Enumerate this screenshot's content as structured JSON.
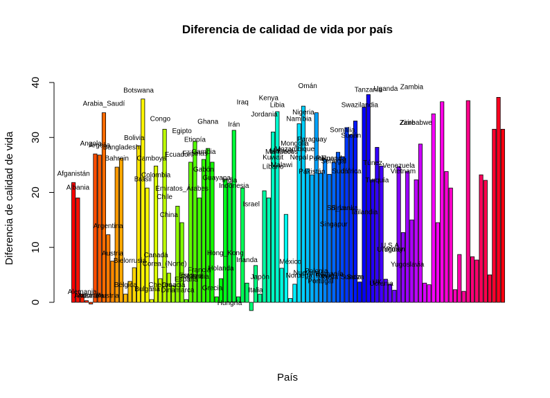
{
  "chart_data": {
    "type": "bar",
    "title": "Diferencia de calidad de vida por país",
    "xlabel": "País",
    "ylabel": "Diferencia de calidad de vida",
    "ylim": [
      -2,
      40
    ],
    "yticks": [
      0,
      10,
      20,
      30,
      40
    ],
    "grid": false,
    "legend": "none",
    "bar_color_scheme": "rainbow",
    "values": [
      21.8,
      19.0,
      1.5,
      0.3,
      -0.3,
      27.0,
      26.8,
      34.5,
      12.3,
      7.5,
      24.6,
      26.2,
      1.5,
      3.8,
      6.3,
      28.5,
      37.0,
      20.8,
      0.5,
      24.8,
      4.3,
      31.5,
      5.3,
      3.0,
      17.5,
      14.5,
      0.5,
      25.5,
      29.3,
      19.0,
      26.0,
      28.0,
      25.5,
      1.0,
      4.3,
      22.3,
      21.7,
      31.3,
      1.0,
      20.8,
      3.5,
      -1.5,
      6.7,
      1.5,
      20.3,
      19.0,
      31.0,
      34.7,
      6.2,
      16.0,
      0.7,
      3.3,
      32.5,
      35.7,
      24.3,
      23.2,
      34.5,
      23.5,
      26.0,
      23.3,
      25.5,
      27.3,
      26.5,
      31.8,
      30.5,
      33.0,
      3.7,
      35.5,
      37.8,
      22.3,
      28.2,
      24.8,
      4.2,
      3.3,
      2.2,
      24.7,
      12.7,
      23.8,
      15.0,
      22.3,
      28.8,
      3.5,
      3.2,
      34.3,
      14.5,
      36.5,
      23.8,
      20.8,
      2.3,
      8.7,
      2.0,
      36.7,
      8.3,
      7.7,
      23.2,
      22.2,
      5.0,
      31.5,
      37.3,
      31.5
    ],
    "annotations": [
      {
        "text": "Afganistán",
        "x": 1,
        "y": 23.0
      },
      {
        "text": "Albania",
        "x": 2,
        "y": 20.5
      },
      {
        "text": "Alemania",
        "x": 3,
        "y": 1.5
      },
      {
        "text": "Andorra",
        "x": 4,
        "y": 0.8
      },
      {
        "text": "Angola",
        "x": 5,
        "y": 28.5
      },
      {
        "text": "Arabia_Saudí",
        "x": 8,
        "y": 35.8
      },
      {
        "text": "Argelia",
        "x": 7,
        "y": 28.2
      },
      {
        "text": "Argentina",
        "x": 9,
        "y": 13.5
      },
      {
        "text": "Australia",
        "x": 5,
        "y": 0.8
      },
      {
        "text": "Austria",
        "x": 10,
        "y": 8.5
      },
      {
        "text": "Austria",
        "x": 9,
        "y": 0.8
      },
      {
        "text": "Bahrein",
        "x": 11,
        "y": 25.8
      },
      {
        "text": "Bangladesh",
        "x": 12,
        "y": 27.8
      },
      {
        "text": "Bélgica",
        "x": 13,
        "y": 2.8
      },
      {
        "text": "Bielorrusia",
        "x": 14,
        "y": 7.2
      },
      {
        "text": "Bolivia",
        "x": 15,
        "y": 29.5
      },
      {
        "text": "Botswana",
        "x": 16,
        "y": 38.2
      },
      {
        "text": "Brasil",
        "x": 17,
        "y": 22.0
      },
      {
        "text": "Bulgaria",
        "x": 18,
        "y": 2.0
      },
      {
        "text": "Camboya",
        "x": 19,
        "y": 25.8
      },
      {
        "text": "Canadá",
        "x": 20,
        "y": 8.2
      },
      {
        "text": "Checos",
        "x": 21,
        "y": 2.8
      },
      {
        "text": "Chile",
        "x": 22,
        "y": 18.8
      },
      {
        "text": "China",
        "x": 23,
        "y": 15.5
      },
      {
        "text": "Colombia",
        "x": 20,
        "y": 22.8
      },
      {
        "text": "Congo",
        "x": 21,
        "y": 33.0
      },
      {
        "text": "Corea_(Norte)",
        "x": 22,
        "y": 6.6
      },
      {
        "text": "Croacia",
        "x": 24,
        "y": 2.8
      },
      {
        "text": "Dinamarca",
        "x": 25,
        "y": 1.8
      },
      {
        "text": "Ecuador",
        "x": 25,
        "y": 26.5
      },
      {
        "text": "Egipto",
        "x": 26,
        "y": 30.8
      },
      {
        "text": "Emiratos_Árabes",
        "x": 26,
        "y": 20.3
      },
      {
        "text": "España",
        "x": 27,
        "y": 3.8
      },
      {
        "text": "Estonia",
        "x": 28,
        "y": 4.5
      },
      {
        "text": "Etiopía",
        "x": 29,
        "y": 29.2
      },
      {
        "text": "Filipinas",
        "x": 29,
        "y": 26.7
      },
      {
        "text": "Finlandia",
        "x": 29,
        "y": 4.3
      },
      {
        "text": "Francia",
        "x": 30,
        "y": 5.5
      },
      {
        "text": "Gabón",
        "x": 31,
        "y": 23.8
      },
      {
        "text": "Gambia",
        "x": 31,
        "y": 27.0
      },
      {
        "text": "Ghana",
        "x": 32,
        "y": 32.5
      },
      {
        "text": "Grecia",
        "x": 33,
        "y": 2.2
      },
      {
        "text": "Guayana",
        "x": 34,
        "y": 22.3
      },
      {
        "text": "Holanda",
        "x": 35,
        "y": 5.8
      },
      {
        "text": "Hong_Kong",
        "x": 36,
        "y": 8.6
      },
      {
        "text": "Hungría",
        "x": 37,
        "y": -0.5
      },
      {
        "text": "India",
        "x": 37,
        "y": 21.8
      },
      {
        "text": "Indonesia",
        "x": 38,
        "y": 20.8
      },
      {
        "text": "Irán",
        "x": 38,
        "y": 32.0
      },
      {
        "text": "Iraq",
        "x": 40,
        "y": 36.0
      },
      {
        "text": "Irlanda",
        "x": 41,
        "y": 7.3
      },
      {
        "text": "Israel",
        "x": 42,
        "y": 17.5
      },
      {
        "text": "Italia",
        "x": 43,
        "y": 1.8
      },
      {
        "text": "Japón",
        "x": 44,
        "y": 4.2
      },
      {
        "text": "Jordania",
        "x": 45,
        "y": 33.8
      },
      {
        "text": "Kenya",
        "x": 46,
        "y": 36.8
      },
      {
        "text": "Kuwait",
        "x": 47,
        "y": 26.0
      },
      {
        "text": "Libia",
        "x": 48,
        "y": 35.5
      },
      {
        "text": "Líbano",
        "x": 47,
        "y": 24.3
      },
      {
        "text": "Malawi",
        "x": 49,
        "y": 24.6
      },
      {
        "text": "Malasia",
        "x": 49,
        "y": 27.2
      },
      {
        "text": "Marruecos",
        "x": 49,
        "y": 27.0
      },
      {
        "text": "México",
        "x": 51,
        "y": 7.0
      },
      {
        "text": "Mongolia",
        "x": 52,
        "y": 28.5
      },
      {
        "text": "Mozambique",
        "x": 52,
        "y": 27.5
      },
      {
        "text": "Namibia",
        "x": 53,
        "y": 33.0
      },
      {
        "text": "Nepal",
        "x": 53,
        "y": 26.0
      },
      {
        "text": "Nigeria",
        "x": 54,
        "y": 34.2
      },
      {
        "text": "Noruega",
        "x": 53,
        "y": 4.5
      },
      {
        "text": "Nueva",
        "x": 54,
        "y": 5.0
      },
      {
        "text": "Omán",
        "x": 55,
        "y": 39.0
      },
      {
        "text": "Pakistán",
        "x": 56,
        "y": 23.4
      },
      {
        "text": "Paraguay",
        "x": 56,
        "y": 29.3
      },
      {
        "text": "Perú",
        "x": 57,
        "y": 25.8
      },
      {
        "text": "Polonia",
        "x": 57,
        "y": 5.3
      },
      {
        "text": "Portugal",
        "x": 58,
        "y": 3.5
      },
      {
        "text": "Reino",
        "x": 59,
        "y": 25.8
      },
      {
        "text": "Reino",
        "x": 59,
        "y": 4.5
      },
      {
        "text": "Rusia",
        "x": 60,
        "y": 4.2
      },
      {
        "text": "Rumanía",
        "x": 60,
        "y": 4.8
      },
      {
        "text": "Ruanda",
        "x": 61,
        "y": 25.8
      },
      {
        "text": "Senegal",
        "x": 61,
        "y": 25.3
      },
      {
        "text": "Singapur",
        "x": 61,
        "y": 13.8
      },
      {
        "text": "Siria",
        "x": 62,
        "y": 16.8
      },
      {
        "text": "Somalia",
        "x": 63,
        "y": 31.0
      },
      {
        "text": "Sri_Lanka",
        "x": 63,
        "y": 16.8
      },
      {
        "text": "Sudáfrica",
        "x": 64,
        "y": 23.5
      },
      {
        "text": "Sudán",
        "x": 65,
        "y": 30.0
      },
      {
        "text": "Suecia",
        "x": 65,
        "y": 4.2
      },
      {
        "text": "Suiza",
        "x": 66,
        "y": 4.2
      },
      {
        "text": "Swazilandia",
        "x": 67,
        "y": 35.5
      },
      {
        "text": "Tailandia",
        "x": 68,
        "y": 16.0
      },
      {
        "text": "Tanzania",
        "x": 69,
        "y": 38.3
      },
      {
        "text": "Túnez",
        "x": 70,
        "y": 25.0
      },
      {
        "text": "Turquía",
        "x": 71,
        "y": 21.8
      },
      {
        "text": "UK",
        "x": 71,
        "y": 3.3
      },
      {
        "text": "Ucrania",
        "x": 72,
        "y": 3.0
      },
      {
        "text": "Uganda",
        "x": 73,
        "y": 38.5
      },
      {
        "text": "Uruguay",
        "x": 74,
        "y": 9.2
      },
      {
        "text": "U.S.A",
        "x": 74,
        "y": 10.0
      },
      {
        "text": "Venezuela",
        "x": 76,
        "y": 24.5
      },
      {
        "text": "Vietnam",
        "x": 77,
        "y": 23.5
      },
      {
        "text": "Yemen",
        "x": 75,
        "y": 9.3
      },
      {
        "text": "Yugoslavia",
        "x": 78,
        "y": 6.5
      },
      {
        "text": "Zambia",
        "x": 79,
        "y": 38.8
      },
      {
        "text": "Zaire",
        "x": 78,
        "y": 32.3
      },
      {
        "text": "Zimbabwe",
        "x": 80,
        "y": 32.3
      }
    ]
  }
}
